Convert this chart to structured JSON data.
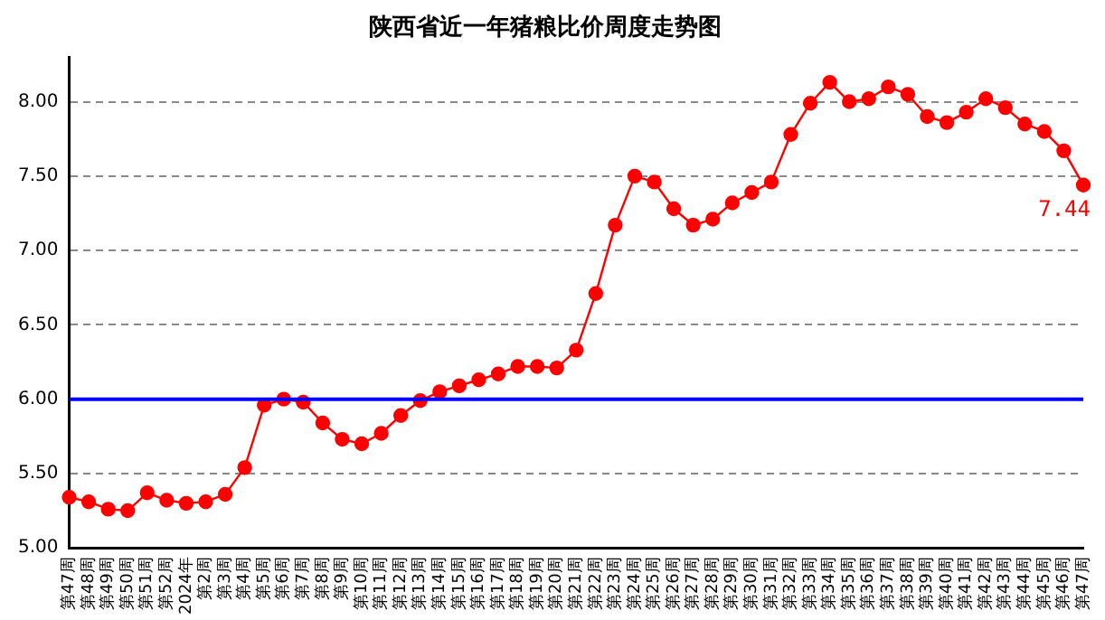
{
  "chart_data": {
    "type": "line",
    "title": "陕西省近一年猪粮比价周度走势图",
    "categories": [
      "第47周",
      "第48周",
      "第49周",
      "第50周",
      "第51周",
      "第52周",
      "2024年",
      "第2周",
      "第3周",
      "第4周",
      "第5周",
      "第6周",
      "第7周",
      "第8周",
      "第9周",
      "第10周",
      "第11周",
      "第12周",
      "第13周",
      "第14周",
      "第15周",
      "第16周",
      "第17周",
      "第18周",
      "第19周",
      "第20周",
      "第21周",
      "第22周",
      "第23周",
      "第24周",
      "第25周",
      "第26周",
      "第27周",
      "第28周",
      "第29周",
      "第30周",
      "第31周",
      "第32周",
      "第33周",
      "第34周",
      "第35周",
      "第36周",
      "第37周",
      "第38周",
      "第39周",
      "第40周",
      "第41周",
      "第42周",
      "第43周",
      "第44周",
      "第45周",
      "第46周",
      "第47周"
    ],
    "series": [
      {
        "color": "#ff0000",
        "values": [
          5.34,
          5.31,
          5.26,
          5.25,
          5.37,
          5.32,
          5.3,
          5.31,
          5.36,
          5.54,
          5.96,
          6.0,
          5.98,
          5.84,
          5.73,
          5.7,
          5.77,
          5.89,
          5.99,
          6.05,
          6.09,
          6.13,
          6.17,
          6.22,
          6.22,
          6.21,
          6.33,
          6.71,
          7.17,
          7.5,
          7.46,
          7.28,
          7.17,
          7.21,
          7.32,
          7.39,
          7.46,
          7.78,
          7.99,
          8.13,
          8.0,
          8.02,
          8.1,
          8.05,
          7.9,
          7.86,
          7.93,
          8.02,
          7.96,
          7.85,
          7.8,
          7.67,
          7.44
        ],
        "value_labels": [
          null,
          null,
          null,
          null,
          null,
          null,
          null,
          null,
          null,
          null,
          null,
          null,
          null,
          null,
          null,
          null,
          null,
          null,
          null,
          null,
          null,
          null,
          null,
          null,
          null,
          null,
          null,
          null,
          null,
          null,
          null,
          null,
          null,
          null,
          null,
          null,
          null,
          null,
          null,
          null,
          null,
          null,
          null,
          null,
          null,
          null,
          null,
          null,
          null,
          null,
          null,
          null,
          "7.44"
        ]
      }
    ],
    "ylim": [
      5,
      8.3
    ],
    "yticks": [
      {
        "value": 5,
        "label": "5.00"
      },
      {
        "value": 5.5,
        "label": "5.50"
      },
      {
        "value": 6,
        "label": "6.00"
      },
      {
        "value": 6.5,
        "label": "6.50"
      },
      {
        "value": 7,
        "label": "7.00"
      },
      {
        "value": 7.5,
        "label": "7.50"
      },
      {
        "value": 8,
        "label": "8.00"
      }
    ],
    "ref_lines": [
      {
        "axis": "y",
        "value": 6,
        "color": "#0000ff"
      }
    ],
    "grid": "y",
    "legend": false,
    "marker": "circle",
    "line_style": "solid"
  }
}
